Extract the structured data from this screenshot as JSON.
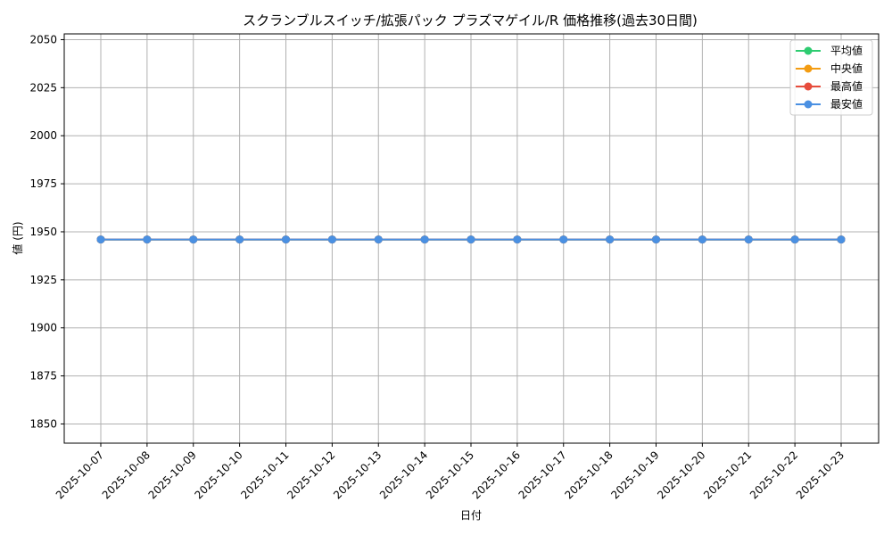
{
  "chart_data": {
    "type": "line",
    "title": "スクランブルスイッチ/拡張パック プラズマゲイル/R 価格推移(過去30日間)",
    "xlabel": "日付",
    "ylabel": "値 (円)",
    "x": [
      "2025-10-07",
      "2025-10-08",
      "2025-10-09",
      "2025-10-10",
      "2025-10-11",
      "2025-10-12",
      "2025-10-13",
      "2025-10-14",
      "2025-10-15",
      "2025-10-16",
      "2025-10-17",
      "2025-10-18",
      "2025-10-19",
      "2025-10-20",
      "2025-10-21",
      "2025-10-22",
      "2025-10-23"
    ],
    "ylim": [
      1840,
      2053
    ],
    "yticks": [
      1850,
      1875,
      1900,
      1925,
      1950,
      1975,
      2000,
      2025,
      2050
    ],
    "grid": true,
    "legend_position": "top-right",
    "series": [
      {
        "name": "平均値",
        "color": "#2ecc71",
        "values": [
          1946,
          1946,
          1946,
          1946,
          1946,
          1946,
          1946,
          1946,
          1946,
          1946,
          1946,
          1946,
          1946,
          1946,
          1946,
          1946,
          1946
        ]
      },
      {
        "name": "中央値",
        "color": "#f39c12",
        "values": [
          1946,
          1946,
          1946,
          1946,
          1946,
          1946,
          1946,
          1946,
          1946,
          1946,
          1946,
          1946,
          1946,
          1946,
          1946,
          1946,
          1946
        ]
      },
      {
        "name": "最高値",
        "color": "#e74c3c",
        "values": [
          1946,
          1946,
          1946,
          1946,
          1946,
          1946,
          1946,
          1946,
          1946,
          1946,
          1946,
          1946,
          1946,
          1946,
          1946,
          1946,
          1946
        ]
      },
      {
        "name": "最安値",
        "color": "#4a90e2",
        "values": [
          1946,
          1946,
          1946,
          1946,
          1946,
          1946,
          1946,
          1946,
          1946,
          1946,
          1946,
          1946,
          1946,
          1946,
          1946,
          1946,
          1946
        ]
      }
    ]
  }
}
